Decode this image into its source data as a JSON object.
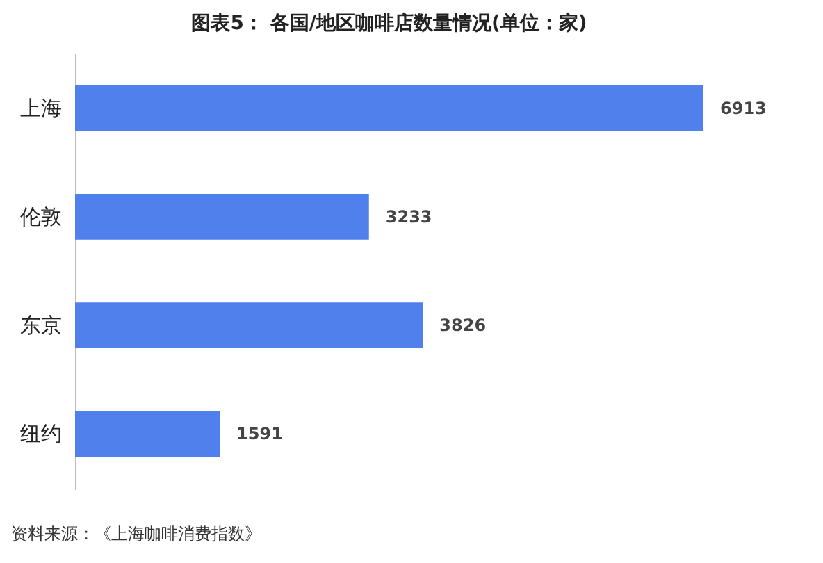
{
  "chart_data": {
    "type": "bar",
    "orientation": "horizontal",
    "title": "图表5： 各国/地区咖啡店数量情况(单位：家)",
    "categories": [
      "上海",
      "伦敦",
      "东京",
      "纽约"
    ],
    "values": [
      6913,
      3233,
      3826,
      1591
    ],
    "color": "#5080ec",
    "data_labels": true,
    "annotations": [
      "资料来源：《上海咖啡消费指数》"
    ]
  }
}
